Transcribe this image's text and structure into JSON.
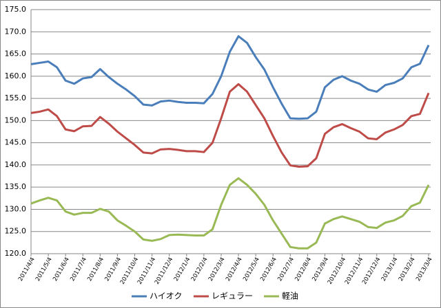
{
  "chart_data": {
    "type": "line",
    "categories": [
      "2011/4/4",
      null,
      "2011/5/4",
      null,
      "2011/6/4",
      null,
      "2011/7/4",
      null,
      "2011/8/4",
      null,
      "2011/9/4",
      null,
      "2011/10/4",
      null,
      "2011/11/4",
      null,
      "2011/12/4",
      null,
      "2012/1/4",
      null,
      "2012/2/4",
      null,
      "2012/3/4",
      null,
      "2012/4/4",
      null,
      "2012/5/4",
      null,
      "2012/6/4",
      null,
      "2012/7/4",
      null,
      "2012/8/4",
      null,
      "2012/9/4",
      null,
      "2012/10/4",
      null,
      "2012/11/4",
      null,
      "2012/12/4",
      null,
      "2013/1/4",
      null,
      "2013/2/4",
      null,
      "2013/3/4"
    ],
    "series": [
      {
        "name": "ハイオク",
        "color": "#4a7ebb",
        "values": [
          162.7,
          163.0,
          163.3,
          162.0,
          159.0,
          158.3,
          159.5,
          159.8,
          161.6,
          159.8,
          158.3,
          157.0,
          155.5,
          153.6,
          153.4,
          154.3,
          154.5,
          154.2,
          154.0,
          154.0,
          153.9,
          156.0,
          160.0,
          165.5,
          169.0,
          167.5,
          164.3,
          161.5,
          157.5,
          153.8,
          150.5,
          150.4,
          150.5,
          152.0,
          157.5,
          159.2,
          160.0,
          159.0,
          158.3,
          157.0,
          156.5,
          158.0,
          158.5,
          159.5,
          162.0,
          162.8,
          167.0
        ]
      },
      {
        "name": "レギュラー",
        "color": "#be4b48",
        "values": [
          151.7,
          152.0,
          152.5,
          151.0,
          148.0,
          147.6,
          148.7,
          148.8,
          150.8,
          149.3,
          147.5,
          146.0,
          144.5,
          142.8,
          142.6,
          143.5,
          143.6,
          143.4,
          143.1,
          143.1,
          142.9,
          145.0,
          150.5,
          156.5,
          158.2,
          156.5,
          153.5,
          150.5,
          146.5,
          142.8,
          139.9,
          139.6,
          139.7,
          141.5,
          147.0,
          148.5,
          149.2,
          148.3,
          147.5,
          146.0,
          145.8,
          147.3,
          148.0,
          149.0,
          151.0,
          151.5,
          156.2
        ]
      },
      {
        "name": "軽油",
        "color": "#98b954",
        "values": [
          131.3,
          132.0,
          132.6,
          132.0,
          129.5,
          128.8,
          129.2,
          129.2,
          130.1,
          129.5,
          127.5,
          126.3,
          125.0,
          123.2,
          122.9,
          123.3,
          124.2,
          124.3,
          124.2,
          124.1,
          124.1,
          125.5,
          131.0,
          135.5,
          137.0,
          135.5,
          133.5,
          131.0,
          127.5,
          124.5,
          121.5,
          121.2,
          121.2,
          122.5,
          126.8,
          127.8,
          128.4,
          127.8,
          127.2,
          126.0,
          125.8,
          127.0,
          127.5,
          128.5,
          130.7,
          131.5,
          135.5
        ]
      }
    ],
    "ylim": [
      120,
      175
    ],
    "yticks": [
      {
        "value": 120,
        "label": "120.0"
      },
      {
        "value": 125,
        "label": "125.0"
      },
      {
        "value": 130,
        "label": "130.0"
      },
      {
        "value": 135,
        "label": "135.0"
      },
      {
        "value": 140,
        "label": "140.0"
      },
      {
        "value": 145,
        "label": "145.0"
      },
      {
        "value": 150,
        "label": "150.0"
      },
      {
        "value": 155,
        "label": "155.0"
      },
      {
        "value": 160,
        "label": "160.0"
      },
      {
        "value": 165,
        "label": "165.0"
      },
      {
        "value": 170,
        "label": "170.0"
      },
      {
        "value": 175,
        "label": "175.0"
      }
    ],
    "grid": true,
    "legend": "bottom"
  }
}
